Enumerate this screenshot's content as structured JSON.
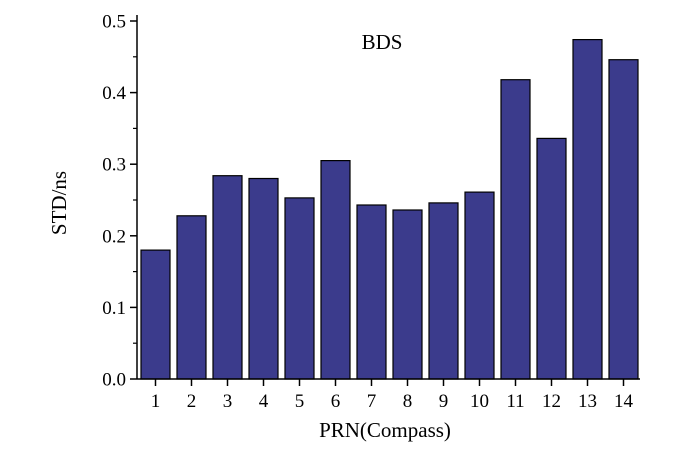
{
  "chart_data": {
    "type": "bar",
    "title": "",
    "annotation": "BDS",
    "xlabel": "PRN(Compass)",
    "ylabel": "STD/ns",
    "categories": [
      "1",
      "2",
      "3",
      "4",
      "5",
      "6",
      "7",
      "8",
      "9",
      "10",
      "11",
      "12",
      "13",
      "14"
    ],
    "values": [
      0.18,
      0.228,
      0.284,
      0.28,
      0.253,
      0.305,
      0.243,
      0.236,
      0.246,
      0.261,
      0.418,
      0.336,
      0.474,
      0.446
    ],
    "ylim": [
      0.0,
      0.5
    ],
    "yticks": [
      "0.0",
      "0.1",
      "0.2",
      "0.3",
      "0.4",
      "0.5"
    ],
    "bar_color": "#3b3b8c",
    "grid": false,
    "legend": "none"
  }
}
